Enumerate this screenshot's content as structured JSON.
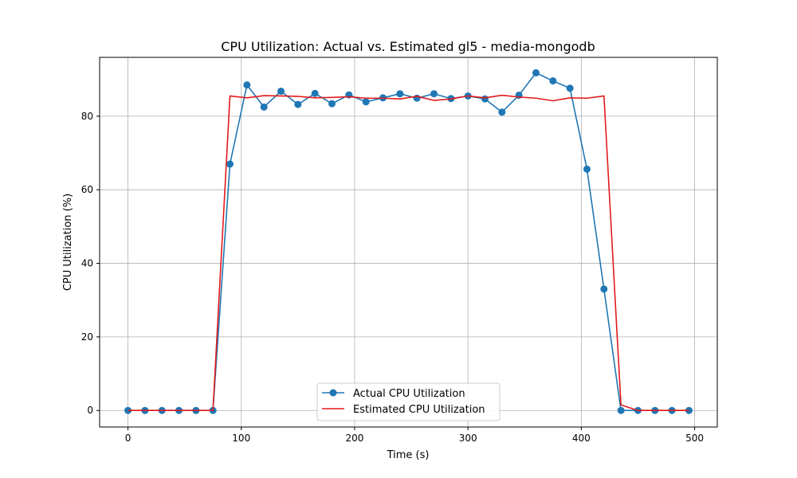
{
  "chart_data": {
    "type": "line",
    "title": "CPU Utilization: Actual vs. Estimated gl5 - media-mongodb",
    "xlabel": "Time (s)",
    "ylabel": "CPU Utilization (%)",
    "xlim": [
      -25,
      520
    ],
    "ylim": [
      -4.5,
      96
    ],
    "xticks": [
      0,
      100,
      200,
      300,
      400,
      500
    ],
    "yticks": [
      0,
      20,
      40,
      60,
      80
    ],
    "grid": true,
    "legend_position": "bottom-center",
    "series": [
      {
        "name": "Actual CPU Utilization",
        "color": "#1f77b4",
        "marker": "circle",
        "x": [
          0,
          15,
          30,
          45,
          60,
          75,
          90,
          105,
          120,
          135,
          150,
          165,
          180,
          195,
          210,
          225,
          240,
          255,
          270,
          285,
          300,
          315,
          330,
          345,
          360,
          375,
          390,
          405,
          420,
          435,
          450,
          465,
          480,
          495
        ],
        "y": [
          0,
          0,
          0,
          0,
          0,
          0,
          67,
          88.5,
          82.5,
          86.8,
          83.2,
          86.2,
          83.4,
          85.8,
          83.9,
          85.0,
          86.1,
          84.9,
          86.1,
          84.8,
          85.5,
          84.7,
          81.1,
          85.7,
          91.8,
          89.6,
          87.6,
          65.6,
          33,
          0,
          0,
          0,
          0,
          0
        ]
      },
      {
        "name": "Estimated CPU Utilization",
        "color": "#e31a1c",
        "marker": "none",
        "x": [
          0,
          15,
          30,
          45,
          60,
          75,
          90,
          105,
          120,
          135,
          150,
          165,
          180,
          195,
          210,
          225,
          240,
          255,
          270,
          285,
          300,
          315,
          330,
          345,
          360,
          375,
          390,
          405,
          420,
          435,
          450,
          465,
          480,
          495
        ],
        "y": [
          0,
          0,
          0,
          0,
          0,
          0,
          85.5,
          85.0,
          85.6,
          85.5,
          85.4,
          85.0,
          85.1,
          85.3,
          84.9,
          84.9,
          84.7,
          85.4,
          84.3,
          84.7,
          85.5,
          85.0,
          85.7,
          85.2,
          84.9,
          84.2,
          85.0,
          84.9,
          85.5,
          1.5,
          0,
          0,
          0,
          0
        ]
      }
    ]
  }
}
